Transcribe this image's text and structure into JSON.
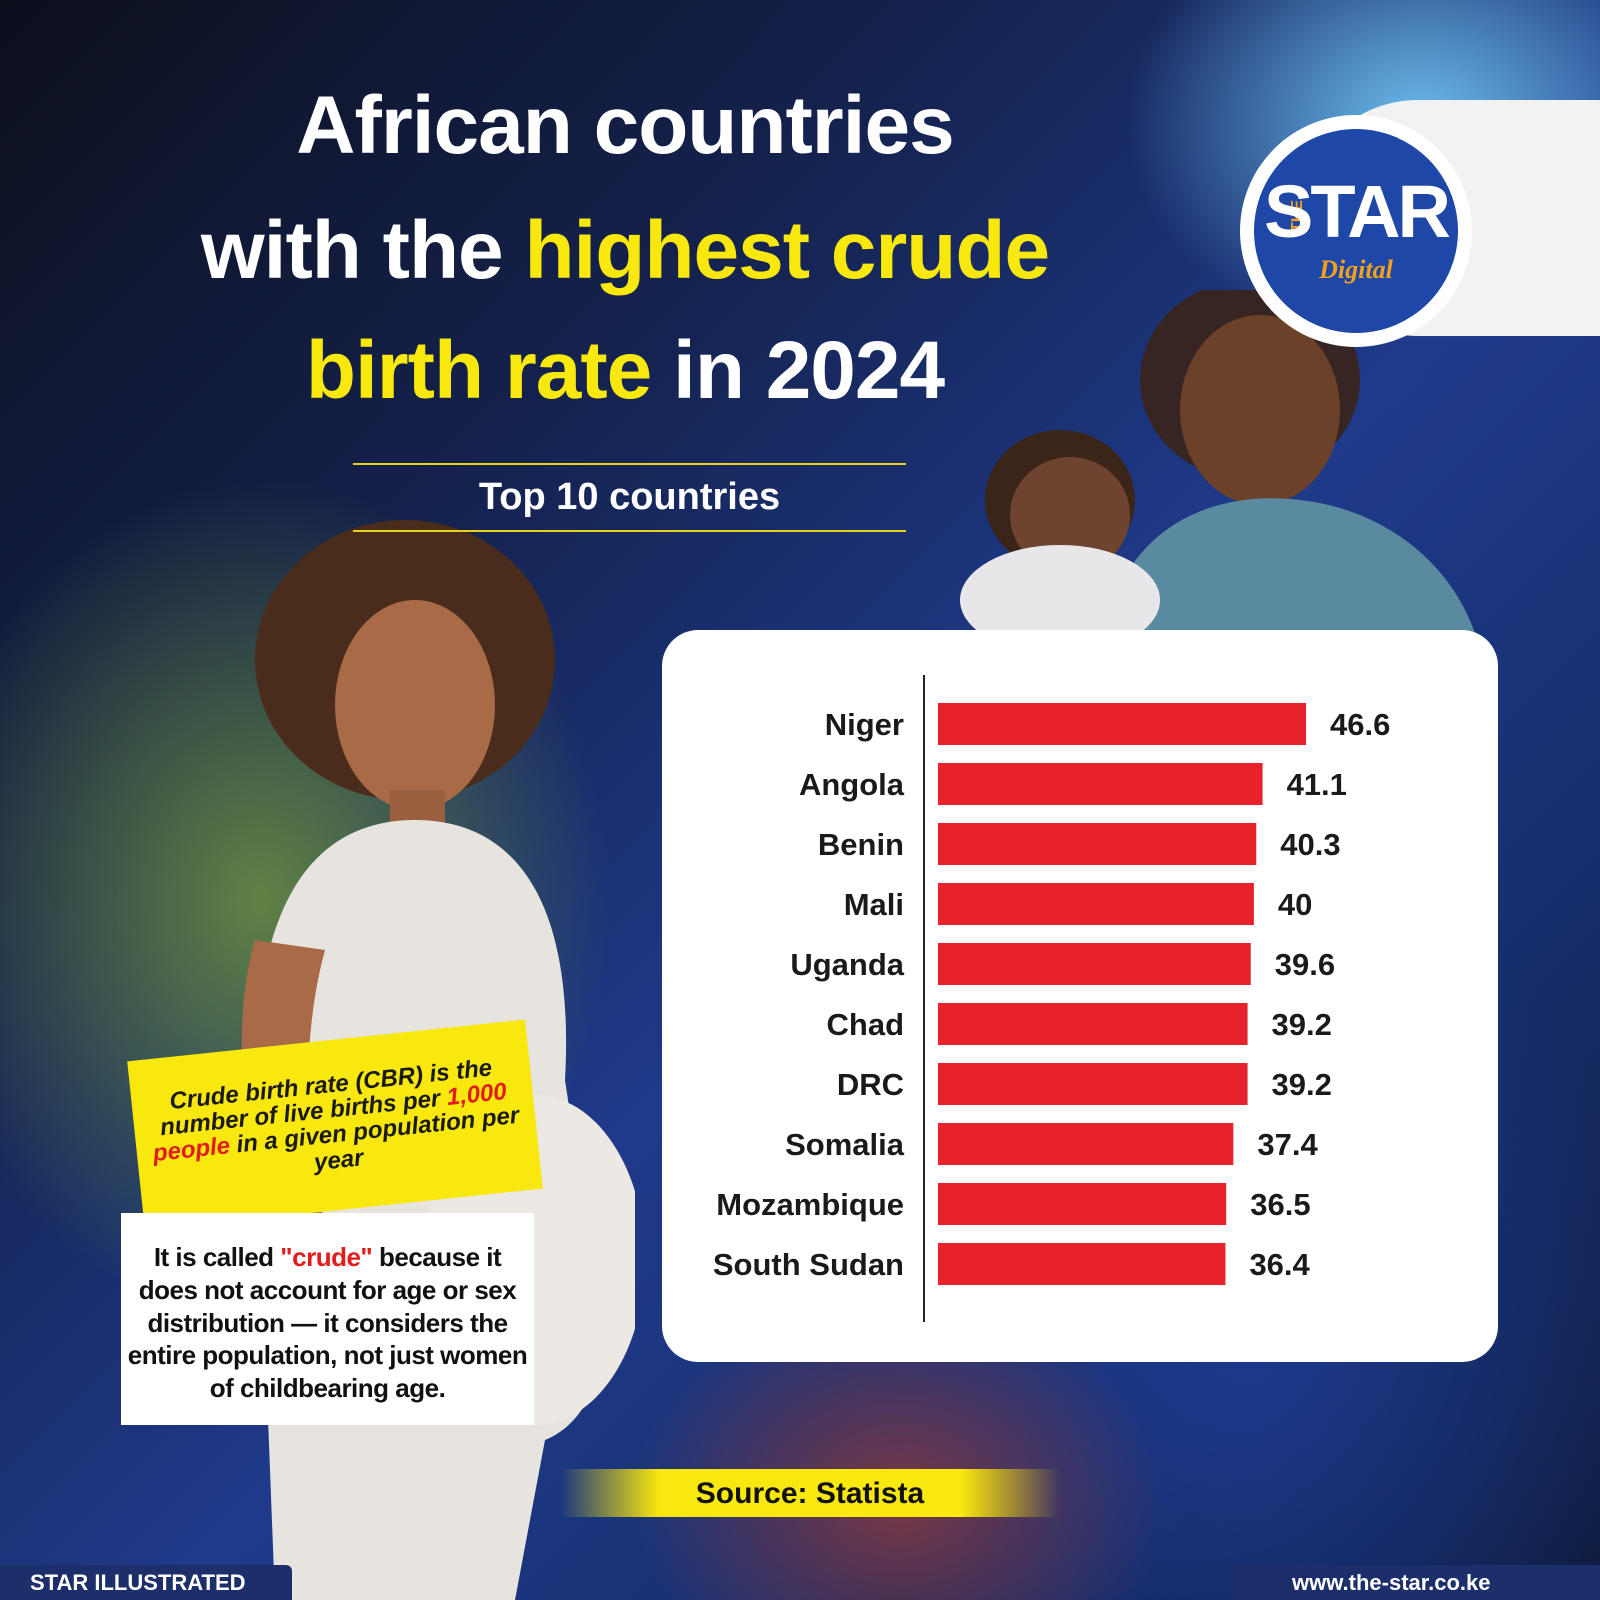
{
  "title": {
    "line1": "African countries",
    "line2_white": "with the",
    "line2_yellow": "highest crude",
    "line3_yellow": "birth rate",
    "line3_white": "in 2024"
  },
  "subtitle": "Top 10 countries",
  "logo": {
    "the": "THE",
    "star": "STAR",
    "digital": "Digital"
  },
  "definition": {
    "part1": "Crude birth rate (CBR) is the number of live births per",
    "highlight": "1,000 people",
    "part2": "in a given population per year"
  },
  "note": {
    "part1": "It is called",
    "highlight": "\"crude\"",
    "part2": "because it does not account for age or sex distribution — it considers the entire population, not just women of childbearing age."
  },
  "source": "Source: Statista",
  "footer": {
    "left": "STAR ILLUSTRATED",
    "right": "www.the-star.co.ke"
  },
  "colors": {
    "bar": "#e8222a",
    "highlight_yellow": "#f9e80d",
    "footer_navy": "#1d2f6b",
    "logo_blue": "#1e47a8"
  },
  "chart_data": {
    "type": "bar",
    "orientation": "horizontal",
    "categories": [
      "Niger",
      "Angola",
      "Benin",
      "Mali",
      "Uganda",
      "Chad",
      "DRC",
      "Somalia",
      "Mozambique",
      "South Sudan"
    ],
    "values": [
      46.6,
      41.1,
      40.3,
      40,
      39.6,
      39.2,
      39.2,
      37.4,
      36.5,
      36.4
    ],
    "value_labels": [
      "46.6",
      "41.1",
      "40.3",
      "40",
      "39.6",
      "39.2",
      "39.2",
      "37.4",
      "36.5",
      "36.4"
    ],
    "grid": false,
    "legend": false,
    "xlim": [
      0,
      46.6
    ]
  }
}
